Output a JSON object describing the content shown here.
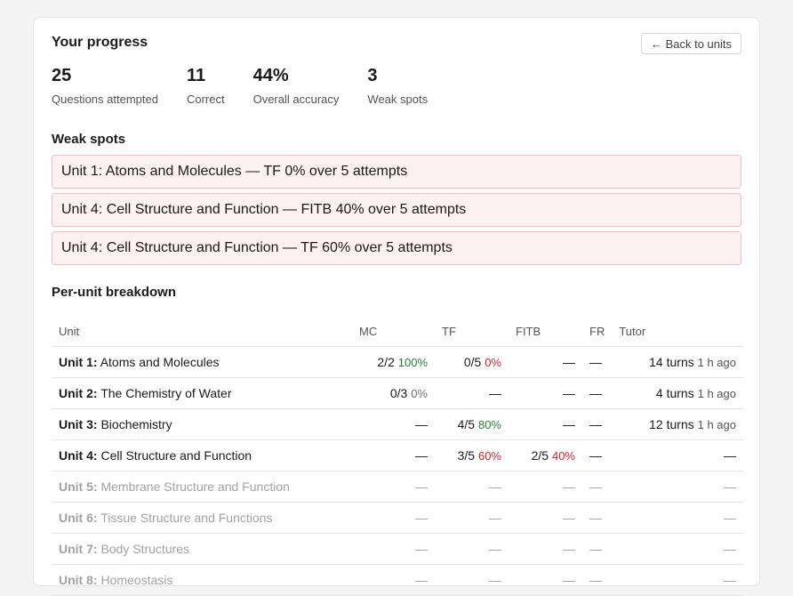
{
  "header": {
    "title": "Your progress",
    "back_label": "← Back to units"
  },
  "stats": [
    {
      "value": "25",
      "label": "Questions attempted"
    },
    {
      "value": "11",
      "label": "Correct"
    },
    {
      "value": "44%",
      "label": "Overall accuracy"
    },
    {
      "value": "3",
      "label": "Weak spots"
    }
  ],
  "weak_spots": {
    "title": "Weak spots",
    "items": [
      "Unit 1: Atoms and Molecules — TF 0% over 5 attempts",
      "Unit 4: Cell Structure and Function — FITB 40% over 5 attempts",
      "Unit 4: Cell Structure and Function — TF 60% over 5 attempts"
    ]
  },
  "breakdown": {
    "title": "Per-unit breakdown",
    "columns": [
      "Unit",
      "MC",
      "TF",
      "FITB",
      "FR",
      "Tutor"
    ],
    "rows": [
      {
        "num": "Unit 1:",
        "name": "Atoms and Molecules",
        "mc": "2/2",
        "mc_pct": "100%",
        "tf": "0/5",
        "tf_pct": "0%",
        "fitb": "—",
        "fitb_pct": "",
        "fr": "—",
        "tutor": "14 turns",
        "ago": "1 h ago"
      },
      {
        "num": "Unit 2:",
        "name": "The Chemistry of Water",
        "mc": "0/3",
        "mc_pct": "0%",
        "tf": "—",
        "tf_pct": "",
        "fitb": "—",
        "fitb_pct": "",
        "fr": "—",
        "tutor": "4 turns",
        "ago": "1 h ago"
      },
      {
        "num": "Unit 3:",
        "name": "Biochemistry",
        "mc": "—",
        "mc_pct": "",
        "tf": "4/5",
        "tf_pct": "80%",
        "fitb": "—",
        "fitb_pct": "",
        "fr": "—",
        "tutor": "12 turns",
        "ago": "1 h ago"
      },
      {
        "num": "Unit 4:",
        "name": "Cell Structure and Function",
        "mc": "—",
        "mc_pct": "",
        "tf": "3/5",
        "tf_pct": "60%",
        "fitb": "2/5",
        "fitb_pct": "40%",
        "fr": "—",
        "tutor": "—",
        "ago": ""
      },
      {
        "num": "Unit 5:",
        "name": "Membrane Structure and Function",
        "mc": "—",
        "mc_pct": "",
        "tf": "—",
        "tf_pct": "",
        "fitb": "—",
        "fitb_pct": "",
        "fr": "—",
        "tutor": "—",
        "ago": ""
      },
      {
        "num": "Unit 6:",
        "name": "Tissue Structure and Functions",
        "mc": "—",
        "mc_pct": "",
        "tf": "—",
        "tf_pct": "",
        "fitb": "—",
        "fitb_pct": "",
        "fr": "—",
        "tutor": "—",
        "ago": ""
      },
      {
        "num": "Unit 7:",
        "name": "Body Structures",
        "mc": "—",
        "mc_pct": "",
        "tf": "—",
        "tf_pct": "",
        "fitb": "—",
        "fitb_pct": "",
        "fr": "—",
        "tutor": "—",
        "ago": ""
      },
      {
        "num": "Unit 8:",
        "name": "Homeostasis",
        "mc": "—",
        "mc_pct": "",
        "tf": "—",
        "tf_pct": "",
        "fitb": "—",
        "fitb_pct": "",
        "fr": "—",
        "tutor": "—",
        "ago": ""
      }
    ]
  },
  "colors": {
    "good": "#2e7d32",
    "bad": "#c62828",
    "muted": "#a1a1aa",
    "weak_bg": "#fdf1f1",
    "weak_border": "#f2bcbc"
  }
}
